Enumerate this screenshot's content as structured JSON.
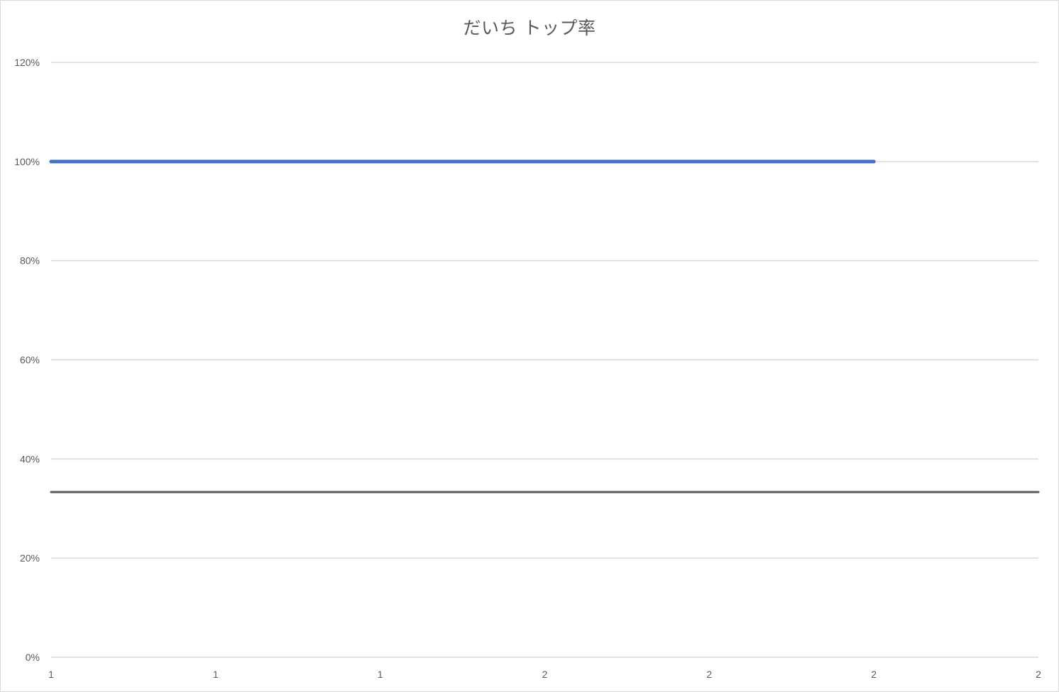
{
  "chart_data": {
    "type": "line",
    "title": "だいち トップ率",
    "xlabel": "",
    "ylabel": "",
    "x_ticks": [
      "1",
      "1",
      "1",
      "2",
      "2",
      "2",
      "2"
    ],
    "y_ticks": [
      "0%",
      "20%",
      "40%",
      "60%",
      "80%",
      "100%",
      "120%"
    ],
    "ylim": [
      0,
      1.2
    ],
    "grid": true,
    "legend": "none",
    "series": [
      {
        "values": [
          1,
          1,
          1,
          1,
          1,
          1,
          null
        ],
        "color": "#4472c4"
      },
      {
        "values": [
          0.3333,
          0.3333,
          0.3333,
          0.3333,
          0.3333,
          0.3333,
          0.3333
        ],
        "color": "#595959"
      }
    ],
    "gridline_color": "#d9d9d9",
    "axis_color": "#595959"
  }
}
